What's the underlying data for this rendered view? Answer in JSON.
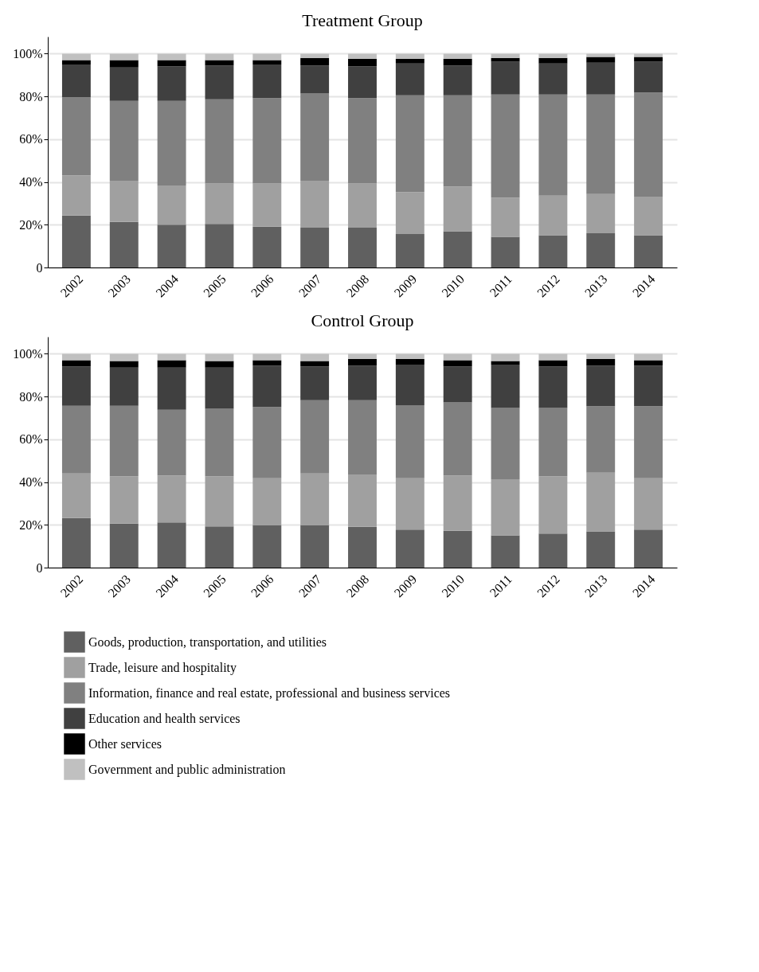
{
  "chart_data": [
    {
      "type": "bar",
      "title": "Treatment Group",
      "stacked": true,
      "grid": "y",
      "legend": false,
      "categories": [
        "2002",
        "2003",
        "2004",
        "2005",
        "2006",
        "2007",
        "2008",
        "2009",
        "2010",
        "2011",
        "2012",
        "2013",
        "2014"
      ],
      "ylim": [
        0,
        108
      ],
      "yticks": [
        {
          "value": 0,
          "label": "0"
        },
        {
          "value": 20,
          "label": "20%"
        },
        {
          "value": 40,
          "label": "40%"
        },
        {
          "value": 60,
          "label": "60%"
        },
        {
          "value": 80,
          "label": "80%"
        },
        {
          "value": 100,
          "label": "100%"
        }
      ],
      "series": [
        {
          "color": "#606060",
          "values": [
            24.3,
            21.3,
            20.0,
            20.4,
            19.1,
            18.6,
            18.6,
            15.6,
            16.9,
            14.3,
            15.1,
            16.0,
            15.1
          ]
        },
        {
          "color": "#a0a0a0",
          "values": [
            18.8,
            19.3,
            18.4,
            18.9,
            20.2,
            22.0,
            20.7,
            19.7,
            21.0,
            18.4,
            18.5,
            18.4,
            18.0
          ]
        },
        {
          "color": "#808080",
          "values": [
            36.5,
            37.3,
            39.5,
            39.4,
            39.9,
            40.8,
            39.9,
            45.2,
            42.6,
            48.2,
            47.3,
            46.5,
            48.7
          ]
        },
        {
          "color": "#404040",
          "values": [
            15.4,
            15.7,
            16.2,
            15.8,
            15.8,
            13.1,
            14.9,
            14.9,
            14.0,
            15.4,
            14.5,
            14.9,
            14.5
          ]
        },
        {
          "color": "#000000",
          "values": [
            2.0,
            3.4,
            2.9,
            2.5,
            2.0,
            3.5,
            3.5,
            2.2,
            3.1,
            1.7,
            2.6,
            2.7,
            2.2
          ]
        },
        {
          "color": "#c0c0c0",
          "values": [
            3.0,
            3.0,
            3.0,
            3.0,
            3.0,
            2.0,
            2.4,
            2.4,
            2.4,
            2.0,
            2.0,
            1.5,
            1.5
          ]
        }
      ]
    },
    {
      "type": "bar",
      "title": "Control Group",
      "stacked": true,
      "grid": "y",
      "legend": "bottom",
      "categories": [
        "2002",
        "2003",
        "2004",
        "2005",
        "2006",
        "2007",
        "2008",
        "2009",
        "2010",
        "2011",
        "2012",
        "2013",
        "2014"
      ],
      "ylim": [
        0,
        108
      ],
      "yticks": [
        {
          "value": 0,
          "label": "0"
        },
        {
          "value": 20,
          "label": "20%"
        },
        {
          "value": 40,
          "label": "40%"
        },
        {
          "value": 60,
          "label": "60%"
        },
        {
          "value": 80,
          "label": "80%"
        },
        {
          "value": 100,
          "label": "100%"
        }
      ],
      "series": [
        {
          "name": "Goods, production, transportation, and utilities",
          "color": "#606060",
          "values": [
            23.2,
            20.6,
            21.1,
            19.3,
            19.7,
            19.7,
            19.1,
            17.8,
            17.2,
            15.1,
            15.9,
            16.9,
            17.8
          ]
        },
        {
          "name": "Trade, leisure and hospitality",
          "color": "#a0a0a0",
          "values": [
            20.8,
            22.1,
            22.0,
            23.4,
            22.1,
            24.3,
            24.5,
            24.0,
            25.9,
            26.2,
            26.8,
            27.5,
            24.0
          ]
        },
        {
          "name": "Information, finance and real estate, professional and business services",
          "color": "#808080",
          "values": [
            31.7,
            33.0,
            30.7,
            31.6,
            33.3,
            34.3,
            34.7,
            34.2,
            34.2,
            33.4,
            32.0,
            31.1,
            33.7
          ]
        },
        {
          "name": "Education and health services",
          "color": "#404040",
          "values": [
            18.4,
            17.9,
            19.8,
            19.3,
            19.4,
            15.8,
            16.2,
            19.0,
            16.8,
            20.3,
            19.4,
            19.0,
            19.0
          ]
        },
        {
          "name": "Other services",
          "color": "#000000",
          "values": [
            2.9,
            3.0,
            3.4,
            3.0,
            2.5,
            2.5,
            3.1,
            2.6,
            2.9,
            1.6,
            2.9,
            3.1,
            2.5
          ]
        },
        {
          "name": "Government and public administration",
          "color": "#c0c0c0",
          "values": [
            3.0,
            3.4,
            3.0,
            3.4,
            3.0,
            3.4,
            2.4,
            2.4,
            3.0,
            3.4,
            3.0,
            2.4,
            3.0
          ]
        }
      ]
    }
  ]
}
